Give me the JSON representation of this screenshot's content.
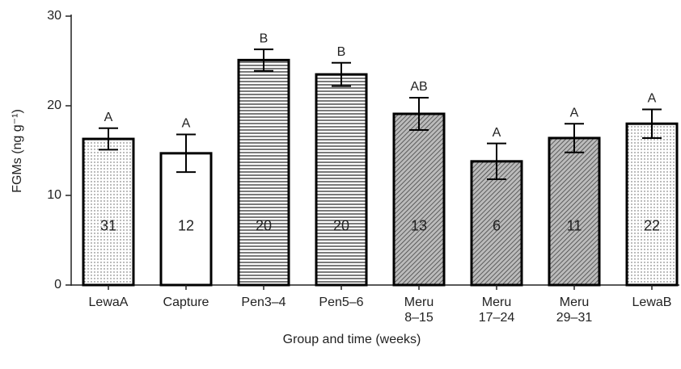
{
  "chart_data": {
    "type": "bar",
    "x_label": "Group and time (weeks)",
    "y_label": "FGMs (ng g⁻¹)",
    "categories": [
      [
        "LewaA"
      ],
      [
        "Capture"
      ],
      [
        "Pen3–4"
      ],
      [
        "Pen5–6"
      ],
      [
        "Meru",
        "8–15"
      ],
      [
        "Meru",
        "17–24"
      ],
      [
        "Meru",
        "29–31"
      ],
      [
        "LewaB"
      ]
    ],
    "values": [
      16.3,
      14.7,
      25.1,
      23.5,
      19.1,
      13.8,
      16.4,
      18.0
    ],
    "errors": [
      1.2,
      2.1,
      1.2,
      1.3,
      1.8,
      2.0,
      1.6,
      1.6
    ],
    "significance_letters": [
      "A",
      "A",
      "B",
      "B",
      "AB",
      "A",
      "A",
      "A"
    ],
    "sample_sizes": [
      31,
      12,
      20,
      20,
      13,
      6,
      11,
      22
    ],
    "patterns": [
      "dots",
      "none",
      "hlines",
      "hlines",
      "diagonal",
      "diagonal",
      "diagonal",
      "dots"
    ],
    "color": "#000000",
    "ylim": [
      0,
      30
    ],
    "yticks": [
      0,
      10,
      20,
      30
    ],
    "grid": false
  }
}
